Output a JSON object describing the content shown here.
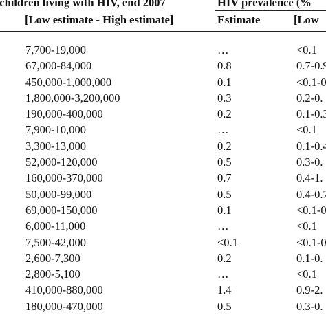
{
  "header": {
    "left_title": "d children living with HIV, end 2007",
    "left_subtitle": "[Low estimate - High estimate]",
    "right_title": "HIV prevalence (%",
    "right_subtitle_estimate": "Estimate",
    "right_subtitle_range": "[Low"
  },
  "rows": [
    {
      "range": "7,700-19,000",
      "estimate": "…",
      "low": "<0.1"
    },
    {
      "range": "67,000-84,000",
      "estimate": "0.8",
      "low": "0.7-0.9"
    },
    {
      "range": "450,000-1,000,000",
      "estimate": "0.1",
      "low": "<0.1-0"
    },
    {
      "range": "1,800,000-3,200,000",
      "estimate": "0.3",
      "low": "0.2-0."
    },
    {
      "range": "190,000-400,000",
      "estimate": "0.2",
      "low": "0.1-0.3"
    },
    {
      "range": "7,900-10,000",
      "estimate": "…",
      "low": "<0.1"
    },
    {
      "range": "3,300-13,000",
      "estimate": "0.2",
      "low": "0.1-0.4"
    },
    {
      "range": "52,000-120,000",
      "estimate": "0.5",
      "low": "0.3-0."
    },
    {
      "range": "160,000-370,000",
      "estimate": "0.7",
      "low": "0.4-1."
    },
    {
      "range": "50,000-99,000",
      "estimate": "0.5",
      "low": "0.4-0.7"
    },
    {
      "range": "69,000-150,000",
      "estimate": "0.1",
      "low": "<0.1-0"
    },
    {
      "range": "6,000-11,000",
      "estimate": "…",
      "low": "<0.1"
    },
    {
      "range": "7,500-42,000",
      "estimate": "<0.1",
      "low": "<0.1-0"
    },
    {
      "range": "2,600-7,300",
      "estimate": "0.2",
      "low": "0.1-0."
    },
    {
      "range": "2,800-5,100",
      "estimate": "…",
      "low": "<0.1"
    },
    {
      "range": "410,000-880,000",
      "estimate": "1.4",
      "low": "0.9-2."
    },
    {
      "range": "180,000-470,000",
      "estimate": "0.5",
      "low": "0.3-0."
    }
  ]
}
